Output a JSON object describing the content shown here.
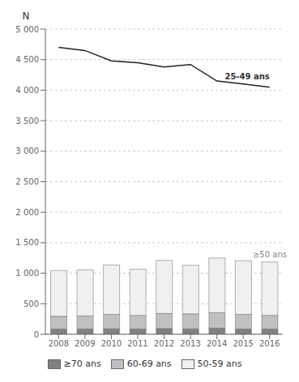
{
  "chart_data": {
    "type": "bar",
    "stacked": true,
    "grid": true,
    "legend": "bottom",
    "y_label": "N",
    "categories": [
      "2008",
      "2009",
      "2010",
      "2011",
      "2012",
      "2013",
      "2014",
      "2015",
      "2016"
    ],
    "series": [
      {
        "name": "≥70 ans",
        "type": "bar",
        "color": "#808080",
        "values": [
          85,
          85,
          90,
          85,
          95,
          90,
          100,
          85,
          85
        ]
      },
      {
        "name": "60-69 ans",
        "type": "bar",
        "color": "#c0c0c0",
        "values": [
          210,
          215,
          235,
          225,
          245,
          245,
          255,
          240,
          225
        ]
      },
      {
        "name": "50-59 ans",
        "type": "bar",
        "color": "#f0f0f0",
        "values": [
          750,
          755,
          810,
          755,
          870,
          795,
          895,
          880,
          875
        ]
      },
      {
        "name": "25-49 ans",
        "type": "line",
        "color": "#222222",
        "values": [
          4700,
          4650,
          4480,
          4450,
          4380,
          4420,
          4150,
          4100,
          4050
        ]
      }
    ],
    "annotations": [
      "≥50 ans"
    ],
    "ylim": [
      0,
      5000
    ],
    "yticks": [
      0,
      500,
      {
        "value": 1000,
        "label": "1 000"
      },
      {
        "value": 1500,
        "label": "1 500"
      },
      {
        "value": 2000,
        "label": "2 000"
      },
      {
        "value": 2500,
        "label": "2 500"
      },
      {
        "value": 3000,
        "label": "3 000"
      },
      {
        "value": 3500,
        "label": "3 500"
      },
      {
        "value": 4000,
        "label": "4 000"
      },
      {
        "value": 4500,
        "label": "4 500"
      },
      {
        "value": 5000,
        "label": "5 000"
      }
    ]
  }
}
